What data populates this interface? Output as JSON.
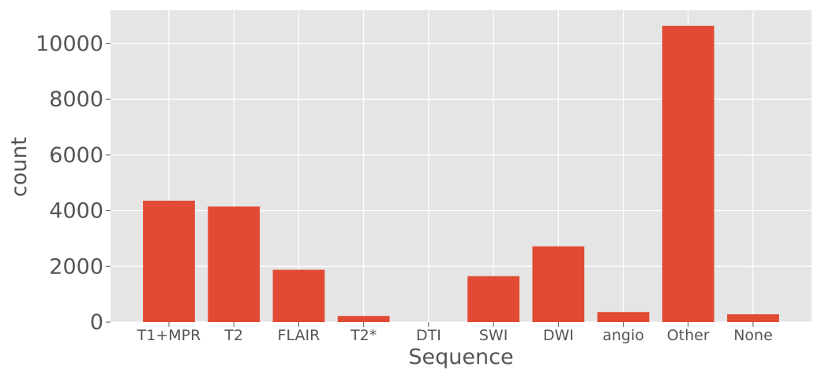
{
  "chart_data": {
    "type": "bar",
    "title": "",
    "xlabel": "Sequence",
    "ylabel": "count",
    "categories": [
      "T1+MPR",
      "T2",
      "FLAIR",
      "T2*",
      "DTI",
      "SWI",
      "DWI",
      "angio",
      "Other",
      "None"
    ],
    "values": [
      4360,
      4150,
      1880,
      220,
      0,
      1650,
      2720,
      360,
      10640,
      280
    ],
    "ylim": [
      0,
      11200
    ],
    "yticks": [
      0,
      2000,
      4000,
      6000,
      8000,
      10000
    ],
    "grid": true,
    "colors": {
      "bar": "#E24A33",
      "background": "#E5E5E5",
      "grid": "#FFFFFF",
      "text": "#555555"
    }
  }
}
